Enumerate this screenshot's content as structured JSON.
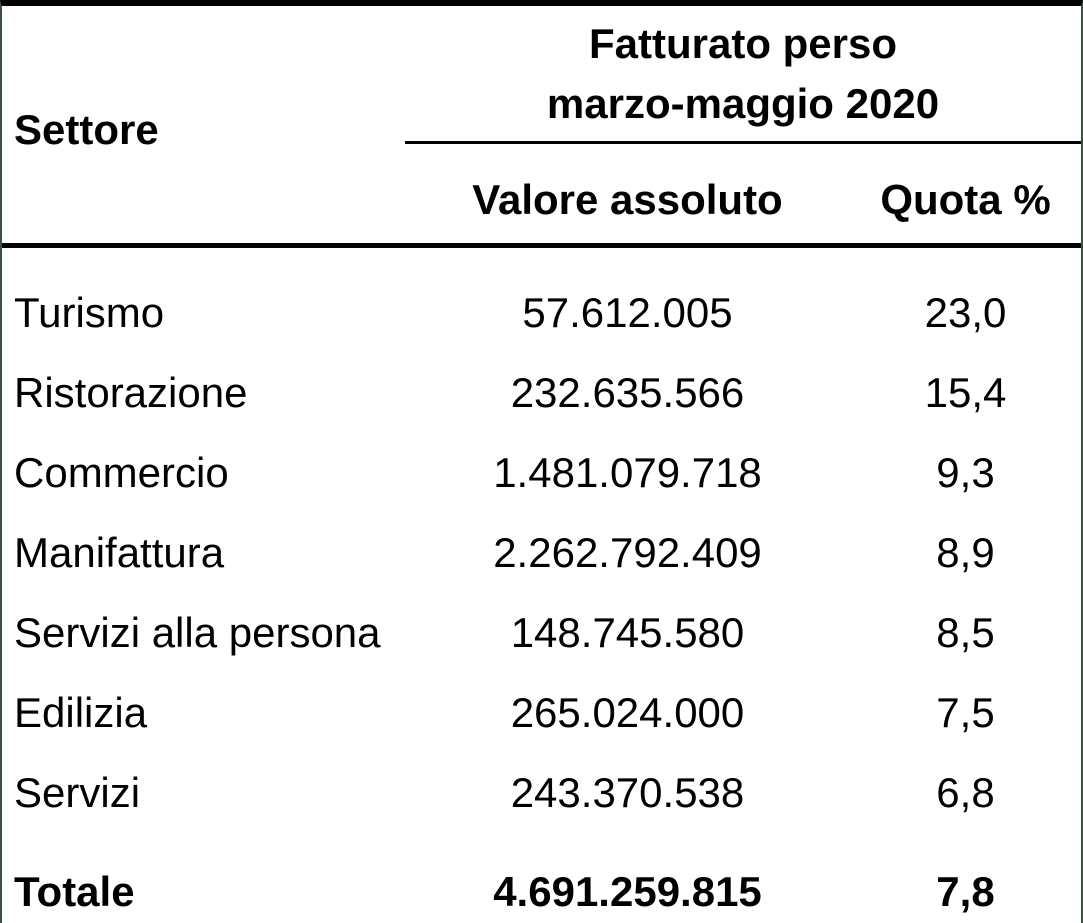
{
  "table": {
    "header": {
      "settore": "Settore",
      "merged_title_line1": "Fatturato perso",
      "merged_title_line2": "marzo-maggio 2020",
      "sub_valore": "Valore assoluto",
      "sub_quota": "Quota %"
    },
    "rows": [
      {
        "settore": "Turismo",
        "valore": "57.612.005",
        "quota": "23,0"
      },
      {
        "settore": "Ristorazione",
        "valore": "232.635.566",
        "quota": "15,4"
      },
      {
        "settore": "Commercio",
        "valore": "1.481.079.718",
        "quota": "9,3"
      },
      {
        "settore": "Manifattura",
        "valore": "2.262.792.409",
        "quota": "8,9"
      },
      {
        "settore": "Servizi alla persona",
        "valore": "148.745.580",
        "quota": "8,5"
      },
      {
        "settore": "Edilizia",
        "valore": "265.024.000",
        "quota": "7,5"
      },
      {
        "settore": "Servizi",
        "valore": "243.370.538",
        "quota": "6,8"
      }
    ],
    "total": {
      "settore": "Totale",
      "valore": "4.691.259.815",
      "quota": "7,8"
    }
  },
  "colors": {
    "text": "#000000",
    "rule": "#000000",
    "edge_green": "#3e4f44",
    "background": "#ffffff"
  },
  "chart_data": {
    "type": "table",
    "title": "Fatturato perso marzo-maggio 2020",
    "columns": [
      "Settore",
      "Valore assoluto",
      "Quota %"
    ],
    "rows": [
      [
        "Turismo",
        57612005,
        23.0
      ],
      [
        "Ristorazione",
        232635566,
        15.4
      ],
      [
        "Commercio",
        1481079718,
        9.3
      ],
      [
        "Manifattura",
        2262792409,
        8.9
      ],
      [
        "Servizi alla persona",
        148745580,
        8.5
      ],
      [
        "Edilizia",
        265024000,
        7.5
      ],
      [
        "Servizi",
        243370538,
        6.8
      ],
      [
        "Totale",
        4691259815,
        7.8
      ]
    ]
  }
}
